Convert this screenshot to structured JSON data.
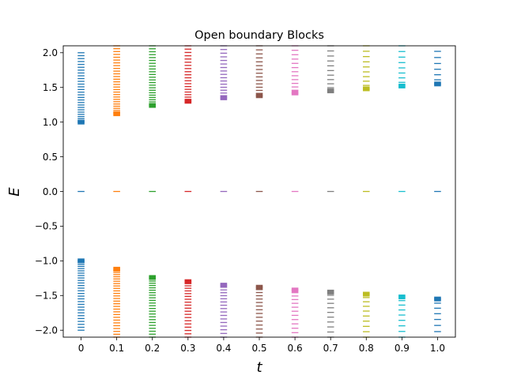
{
  "chart_data": {
    "type": "scatter",
    "title": "Open boundary Blocks",
    "xlabel": "t",
    "ylabel": "E",
    "xlim": [
      -0.05,
      1.05
    ],
    "ylim": [
      -2.1,
      2.1
    ],
    "grid": false,
    "legend": "none",
    "marker": "horizontal line",
    "xticks": [
      "0",
      "0.1",
      "0.2",
      "0.3",
      "0.4",
      "0.5",
      "0.6",
      "0.7",
      "0.8",
      "0.9",
      "1.0"
    ],
    "yticks": [
      "−2.0",
      "−1.5",
      "−1.0",
      "−0.5",
      "0.0",
      "0.5",
      "1.0",
      "1.5",
      "2.0"
    ],
    "series": [
      {
        "t": 0.0,
        "color": "#1f77b4",
        "band_min": 1.0,
        "band_max": 2.0,
        "n_levels": 28
      },
      {
        "t": 0.1,
        "color": "#ff7f0e",
        "band_min": 1.12,
        "band_max": 2.1,
        "n_levels": 28
      },
      {
        "t": 0.2,
        "color": "#2ca02c",
        "band_min": 1.24,
        "band_max": 2.1,
        "n_levels": 24
      },
      {
        "t": 0.3,
        "color": "#d62728",
        "band_min": 1.3,
        "band_max": 2.1,
        "n_levels": 20
      },
      {
        "t": 0.4,
        "color": "#9467bd",
        "band_min": 1.35,
        "band_max": 2.1,
        "n_levels": 17
      },
      {
        "t": 0.5,
        "color": "#8c564b",
        "band_min": 1.38,
        "band_max": 2.1,
        "n_levels": 15
      },
      {
        "t": 0.6,
        "color": "#e377c2",
        "band_min": 1.42,
        "band_max": 2.1,
        "n_levels": 13
      },
      {
        "t": 0.7,
        "color": "#7f7f7f",
        "band_min": 1.45,
        "band_max": 2.1,
        "n_levels": 11
      },
      {
        "t": 0.8,
        "color": "#bcbd22",
        "band_min": 1.48,
        "band_max": 2.1,
        "n_levels": 10
      },
      {
        "t": 0.9,
        "color": "#17becf",
        "band_min": 1.52,
        "band_max": 2.1,
        "n_levels": 9
      },
      {
        "t": 1.0,
        "color": "#1f77b4",
        "band_min": 1.55,
        "band_max": 2.02,
        "n_levels": 7
      }
    ],
    "zero_mode_energy": 0.0
  }
}
